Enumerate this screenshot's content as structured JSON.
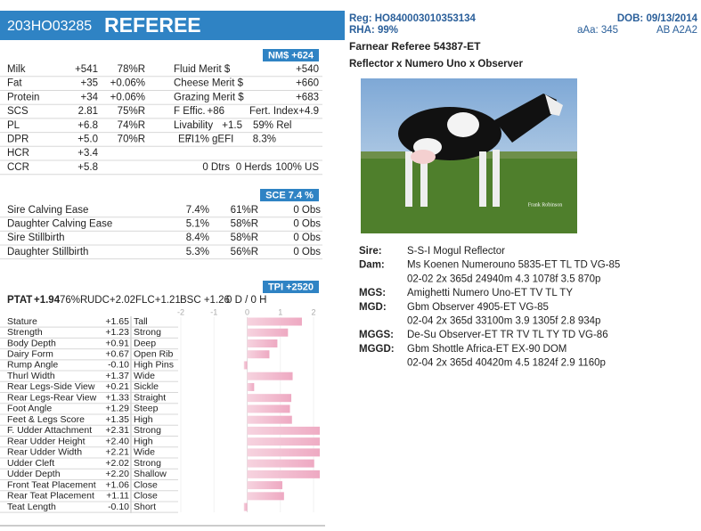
{
  "header": {
    "id": "203HO03285",
    "name": "REFEREE",
    "reg": "Reg: HO840003010353134",
    "dob": "DOB: 09/13/2014",
    "rha": "RHA: 99%",
    "aaa": "aAa: 345",
    "genes": "AB A2A2"
  },
  "animal": {
    "full_name": "Farnear Referee 54387-ET",
    "pedigree_line": "Reflector x Numero Uno x Observer",
    "photo_credit": "Frank Robinson"
  },
  "production": {
    "badge": "NM$ +624",
    "rows": [
      [
        "Milk",
        "+541",
        "78%R",
        "Fluid Merit $",
        "+540"
      ],
      [
        "Fat",
        "+35",
        "+0.06%",
        "Cheese Merit $",
        "+660"
      ],
      [
        "Protein",
        "+34",
        "+0.06%",
        "Grazing Merit $",
        "+683"
      ],
      [
        "SCS",
        "2.81",
        "75%R",
        "F Effic.",
        "+86",
        "Fert. Index",
        "+4.9"
      ],
      [
        "PL",
        "+6.8",
        "74%R",
        "Livability",
        "+1.5",
        "59% Rel"
      ],
      [
        "DPR",
        "+5.0",
        "70%R",
        "EFI",
        "7.1%",
        "gEFI",
        "8.3%"
      ],
      [
        "HCR",
        "+3.4"
      ],
      [
        "CCR",
        "+5.8",
        "0 Dtrs",
        "0 Herds",
        "100% US"
      ]
    ]
  },
  "calving": {
    "badge": "SCE 7.4 %",
    "rows": [
      [
        "Sire Calving Ease",
        "7.4%",
        "61%R",
        "0 Obs"
      ],
      [
        "Daughter Calving Ease",
        "5.1%",
        "58%R",
        "0 Obs"
      ],
      [
        "Sire Stillbirth",
        "8.4%",
        "58%R",
        "0 Obs"
      ],
      [
        "Daughter Stillbirth",
        "5.3%",
        "56%R",
        "0 Obs"
      ]
    ]
  },
  "type": {
    "badge": "TPI +2520",
    "summary": [
      "PTAT",
      "+1.94",
      "76%R",
      "UDC+2.02",
      "FLC+1.21",
      "BSC +1.26",
      "0 D / 0 H"
    ],
    "axis_ticks": [
      -2,
      -1,
      0,
      1,
      2
    ],
    "traits": [
      {
        "name": "Stature",
        "value": 1.65,
        "label": "+1.65",
        "descriptor": "Tall"
      },
      {
        "name": "Strength",
        "value": 1.23,
        "label": "+1.23",
        "descriptor": "Strong"
      },
      {
        "name": "Body Depth",
        "value": 0.91,
        "label": "+0.91",
        "descriptor": "Deep"
      },
      {
        "name": "Dairy Form",
        "value": 0.67,
        "label": "+0.67",
        "descriptor": "Open Rib"
      },
      {
        "name": "Rump Angle",
        "value": -0.1,
        "label": "-0.10",
        "descriptor": "High Pins"
      },
      {
        "name": "Thurl Width",
        "value": 1.37,
        "label": "+1.37",
        "descriptor": "Wide"
      },
      {
        "name": "Rear Legs-Side View",
        "value": 0.21,
        "label": "+0.21",
        "descriptor": "Sickle"
      },
      {
        "name": "Rear Legs-Rear View",
        "value": 1.33,
        "label": "+1.33",
        "descriptor": "Straight"
      },
      {
        "name": "Foot Angle",
        "value": 1.29,
        "label": "+1.29",
        "descriptor": "Steep"
      },
      {
        "name": "Feet & Legs Score",
        "value": 1.35,
        "label": "+1.35",
        "descriptor": "High"
      },
      {
        "name": "F. Udder Attachment",
        "value": 2.31,
        "label": "+2.31",
        "descriptor": "Strong"
      },
      {
        "name": "Rear Udder Height",
        "value": 2.4,
        "label": "+2.40",
        "descriptor": "High"
      },
      {
        "name": "Rear Udder Width",
        "value": 2.21,
        "label": "+2.21",
        "descriptor": "Wide"
      },
      {
        "name": "Udder Cleft",
        "value": 2.02,
        "label": "+2.02",
        "descriptor": "Strong"
      },
      {
        "name": "Udder Depth",
        "value": 2.2,
        "label": "+2.20",
        "descriptor": "Shallow"
      },
      {
        "name": "Front Teat Placement",
        "value": 1.06,
        "label": "+1.06",
        "descriptor": "Close"
      },
      {
        "name": "Rear Teat Placement",
        "value": 1.11,
        "label": "+1.11",
        "descriptor": "Close"
      },
      {
        "name": "Teat Length",
        "value": -0.1,
        "label": "-0.10",
        "descriptor": "Short"
      }
    ]
  },
  "pedigree": [
    {
      "label": "Sire:",
      "lines": [
        "S-S-I Mogul Reflector"
      ]
    },
    {
      "label": "Dam:",
      "lines": [
        "Ms Koenen Numerouno 5835-ET TL TD VG-85",
        "02-02 2x 365d 24940m 4.3 1078f 3.5 870p"
      ]
    },
    {
      "label": "MGS:",
      "lines": [
        "Amighetti Numero Uno-ET TV TL TY"
      ]
    },
    {
      "label": "MGD:",
      "lines": [
        "Gbm Observer 4905-ET VG-85",
        "02-04 2x 365d 33100m 3.9 1305f 2.8 934p"
      ]
    },
    {
      "label": "MGGS:",
      "lines": [
        "De-Su Observer-ET TR TV TL TY TD VG-86"
      ]
    },
    {
      "label": "MGGD:",
      "lines": [
        "Gbm Shottle Africa-ET EX-90 DOM",
        "02-04 2x 365d 40420m 4.5 1824f 2.9 1160p"
      ]
    }
  ]
}
